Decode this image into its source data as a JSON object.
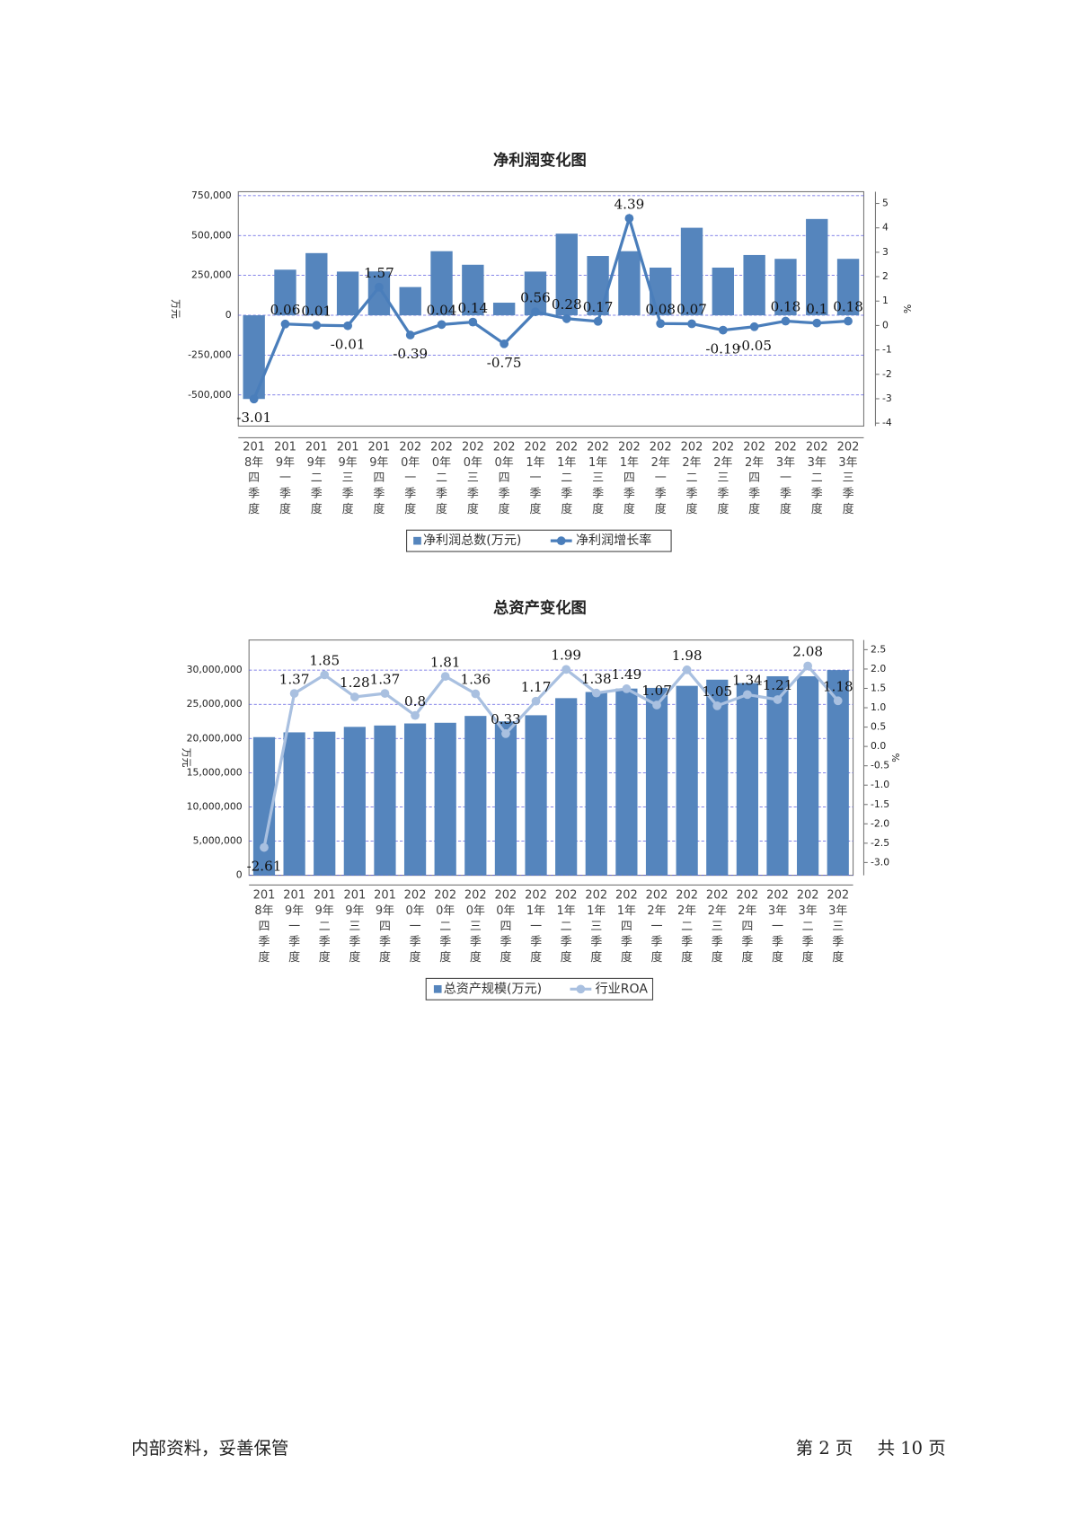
{
  "chart_data": [
    {
      "type": "bar",
      "title": "净利润变化图",
      "ylabel": "万元",
      "y2label": "%",
      "categories": [
        "2018年四季度",
        "2019年一季度",
        "2019年二季度",
        "2019年三季度",
        "2019年四季度",
        "2020年一季度",
        "2020年二季度",
        "2020年三季度",
        "2020年四季度",
        "2021年一季度",
        "2021年二季度",
        "2021年三季度",
        "2021年四季度",
        "2022年一季度",
        "2022年二季度",
        "2022年三季度",
        "2022年四季度",
        "2023年一季度",
        "2023年二季度",
        "2023年三季度"
      ],
      "series": [
        {
          "name": "净利润总数(万元)",
          "type": "bar",
          "color": "#5585bd",
          "values": [
            -525000,
            286000,
            390000,
            274000,
            275000,
            177000,
            402000,
            317000,
            79000,
            274000,
            512000,
            372000,
            402000,
            299000,
            549000,
            299000,
            378000,
            354000,
            604000,
            354000
          ]
        },
        {
          "name": "净利润增长率",
          "type": "line",
          "axis": "y2",
          "color": "#4a7ebb",
          "values": [
            -3.01,
            0.06,
            0.01,
            -0.01,
            1.57,
            -0.39,
            0.04,
            0.14,
            -0.75,
            0.56,
            0.28,
            0.17,
            4.39,
            0.08,
            0.07,
            -0.19,
            -0.05,
            0.18,
            0.1,
            0.18
          ]
        }
      ],
      "ylim": [
        -695000,
        775000
      ],
      "yticks": [
        {
          "value": 750000,
          "label": "750,000"
        },
        {
          "value": 500000,
          "label": "500,000"
        },
        {
          "value": 250000,
          "label": "250,000"
        },
        0,
        {
          "value": -250000,
          "label": "-250,000"
        },
        {
          "value": -500000,
          "label": "-500,000"
        }
      ],
      "y2lim": [
        -4.12,
        5.48
      ],
      "y2ticks": [
        5,
        4,
        3,
        2,
        1,
        0,
        -1,
        -2,
        -3,
        -4
      ],
      "grid": true
    },
    {
      "type": "bar",
      "title": "总资产变化图",
      "ylabel": "万元",
      "y2label": "%",
      "categories": [
        "2018年四季度",
        "2019年一季度",
        "2019年二季度",
        "2019年三季度",
        "2019年四季度",
        "2020年一季度",
        "2020年二季度",
        "2020年三季度",
        "2020年四季度",
        "2021年一季度",
        "2021年二季度",
        "2021年三季度",
        "2021年四季度",
        "2022年一季度",
        "2022年二季度",
        "2022年三季度",
        "2022年四季度",
        "2023年一季度",
        "2023年二季度",
        "2023年三季度"
      ],
      "series": [
        {
          "name": "总资产规模(万元)",
          "type": "bar",
          "color": "#5585bd",
          "values": [
            20200000,
            20900000,
            21000000,
            21700000,
            21900000,
            22200000,
            22300000,
            23300000,
            22500000,
            23400000,
            25900000,
            26800000,
            27300000,
            27400000,
            27700000,
            28600000,
            28100000,
            29100000,
            29100000,
            30000000
          ]
        },
        {
          "name": "行业ROA",
          "type": "line",
          "axis": "y2",
          "color": "#a9c0e0",
          "values": [
            -2.61,
            1.37,
            1.85,
            1.28,
            1.37,
            0.8,
            1.81,
            1.36,
            0.33,
            1.17,
            1.99,
            1.38,
            1.49,
            1.07,
            1.98,
            1.05,
            1.34,
            1.21,
            2.08,
            1.18
          ]
        }
      ],
      "ylim": [
        0,
        34400000
      ],
      "yticks": [
        {
          "value": 30000000,
          "label": "30,000,000"
        },
        {
          "value": 25000000,
          "label": "25,000,000"
        },
        {
          "value": 20000000,
          "label": "20,000,000"
        },
        {
          "value": 15000000,
          "label": "15,000,000"
        },
        {
          "value": 10000000,
          "label": "10,000,000"
        },
        {
          "value": 5000000,
          "label": "5,000,000"
        },
        0
      ],
      "y2lim": [
        -3.33,
        2.75
      ],
      "y2ticks": [
        2.5,
        {
          "value": 2,
          "label": "2.0"
        },
        1.5,
        {
          "value": 1,
          "label": "1.0"
        },
        0.5,
        {
          "value": 0,
          "label": "0.0"
        },
        -0.5,
        {
          "value": -1,
          "label": "-1.0"
        },
        -1.5,
        {
          "value": -2,
          "label": "-2.0"
        },
        -2.5,
        {
          "value": -3,
          "label": "-3.0"
        }
      ],
      "grid": true
    }
  ],
  "footer": {
    "left": "内部资料，妥善保管",
    "page": "第 2 页",
    "total": "共 10 页"
  }
}
